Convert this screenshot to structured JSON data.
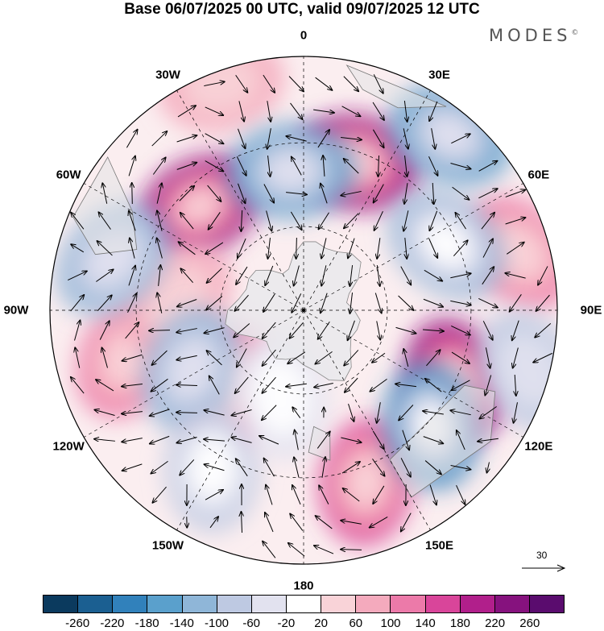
{
  "title": "Base 06/07/2025 00 UTC, valid 09/07/2025 12 UTC",
  "logo": {
    "text": "MODES",
    "mark": "©"
  },
  "map": {
    "projection": "south-polar-stereographic",
    "longitude_labels": [
      {
        "id": "0",
        "text": "0",
        "lon": 0
      },
      {
        "id": "30e",
        "text": "30E",
        "lon": 30
      },
      {
        "id": "60e",
        "text": "60E",
        "lon": 60
      },
      {
        "id": "90e",
        "text": "90E",
        "lon": 90
      },
      {
        "id": "120e",
        "text": "120E",
        "lon": 120
      },
      {
        "id": "150e",
        "text": "150E",
        "lon": 150
      },
      {
        "id": "180",
        "text": "180",
        "lon": 180
      },
      {
        "id": "150w",
        "text": "150W",
        "lon": -150
      },
      {
        "id": "120w",
        "text": "120W",
        "lon": -120
      },
      {
        "id": "90w",
        "text": "90W",
        "lon": -90
      },
      {
        "id": "60w",
        "text": "60W",
        "lon": -60
      },
      {
        "id": "30w",
        "text": "30W",
        "lon": -30
      }
    ],
    "anomaly_centers": [
      {
        "id": "pos-1",
        "lon": 20,
        "colat": 0.62,
        "value": 240
      },
      {
        "id": "pos-2",
        "lon": 115,
        "colat": 0.66,
        "value": 240
      },
      {
        "id": "pos-3",
        "lon": -45,
        "colat": 0.58,
        "value": 230
      },
      {
        "id": "pos-4",
        "lon": 160,
        "colat": 0.72,
        "value": 150
      },
      {
        "id": "pos-5",
        "lon": -135,
        "colat": 0.42,
        "value": 130
      },
      {
        "id": "pos-6",
        "lon": -105,
        "colat": 0.72,
        "value": 120
      },
      {
        "id": "pos-7",
        "lon": 75,
        "colat": 0.88,
        "value": 100
      },
      {
        "id": "pos-8",
        "lon": -85,
        "colat": 0.5,
        "value": 90
      },
      {
        "id": "pos-9",
        "lon": -20,
        "colat": 0.95,
        "value": 60
      },
      {
        "id": "neg-1",
        "lon": 40,
        "colat": 0.9,
        "value": -170
      },
      {
        "id": "neg-2",
        "lon": 132,
        "colat": 0.68,
        "value": -220
      },
      {
        "id": "neg-3",
        "lon": 65,
        "colat": 0.62,
        "value": -140
      },
      {
        "id": "neg-4",
        "lon": -5,
        "colat": 0.55,
        "value": -150
      },
      {
        "id": "neg-5",
        "lon": -75,
        "colat": 0.78,
        "value": -120
      },
      {
        "id": "neg-6",
        "lon": -118,
        "colat": 0.5,
        "value": -110
      },
      {
        "id": "neg-7",
        "lon": -150,
        "colat": 0.72,
        "value": -100
      },
      {
        "id": "neg-8",
        "lon": -165,
        "colat": 0.35,
        "value": -60
      },
      {
        "id": "neg-9",
        "lon": 105,
        "colat": 0.92,
        "value": -80
      }
    ]
  },
  "vector_reference": {
    "value": "30"
  },
  "colorbar": {
    "levels": [
      "-260",
      "-220",
      "-180",
      "-140",
      "-100",
      "-60",
      "-20",
      "20",
      "60",
      "100",
      "140",
      "180",
      "220",
      "260"
    ],
    "colors": [
      "#0b3a5e",
      "#1b5f91",
      "#3181bb",
      "#5aa0cc",
      "#8fb6d8",
      "#bec9e2",
      "#e2e2ef",
      "#ffffff",
      "#f9d3d8",
      "#f4aabd",
      "#ec7aa9",
      "#d9459a",
      "#b11f8b",
      "#86127e",
      "#5a0c6e"
    ]
  }
}
